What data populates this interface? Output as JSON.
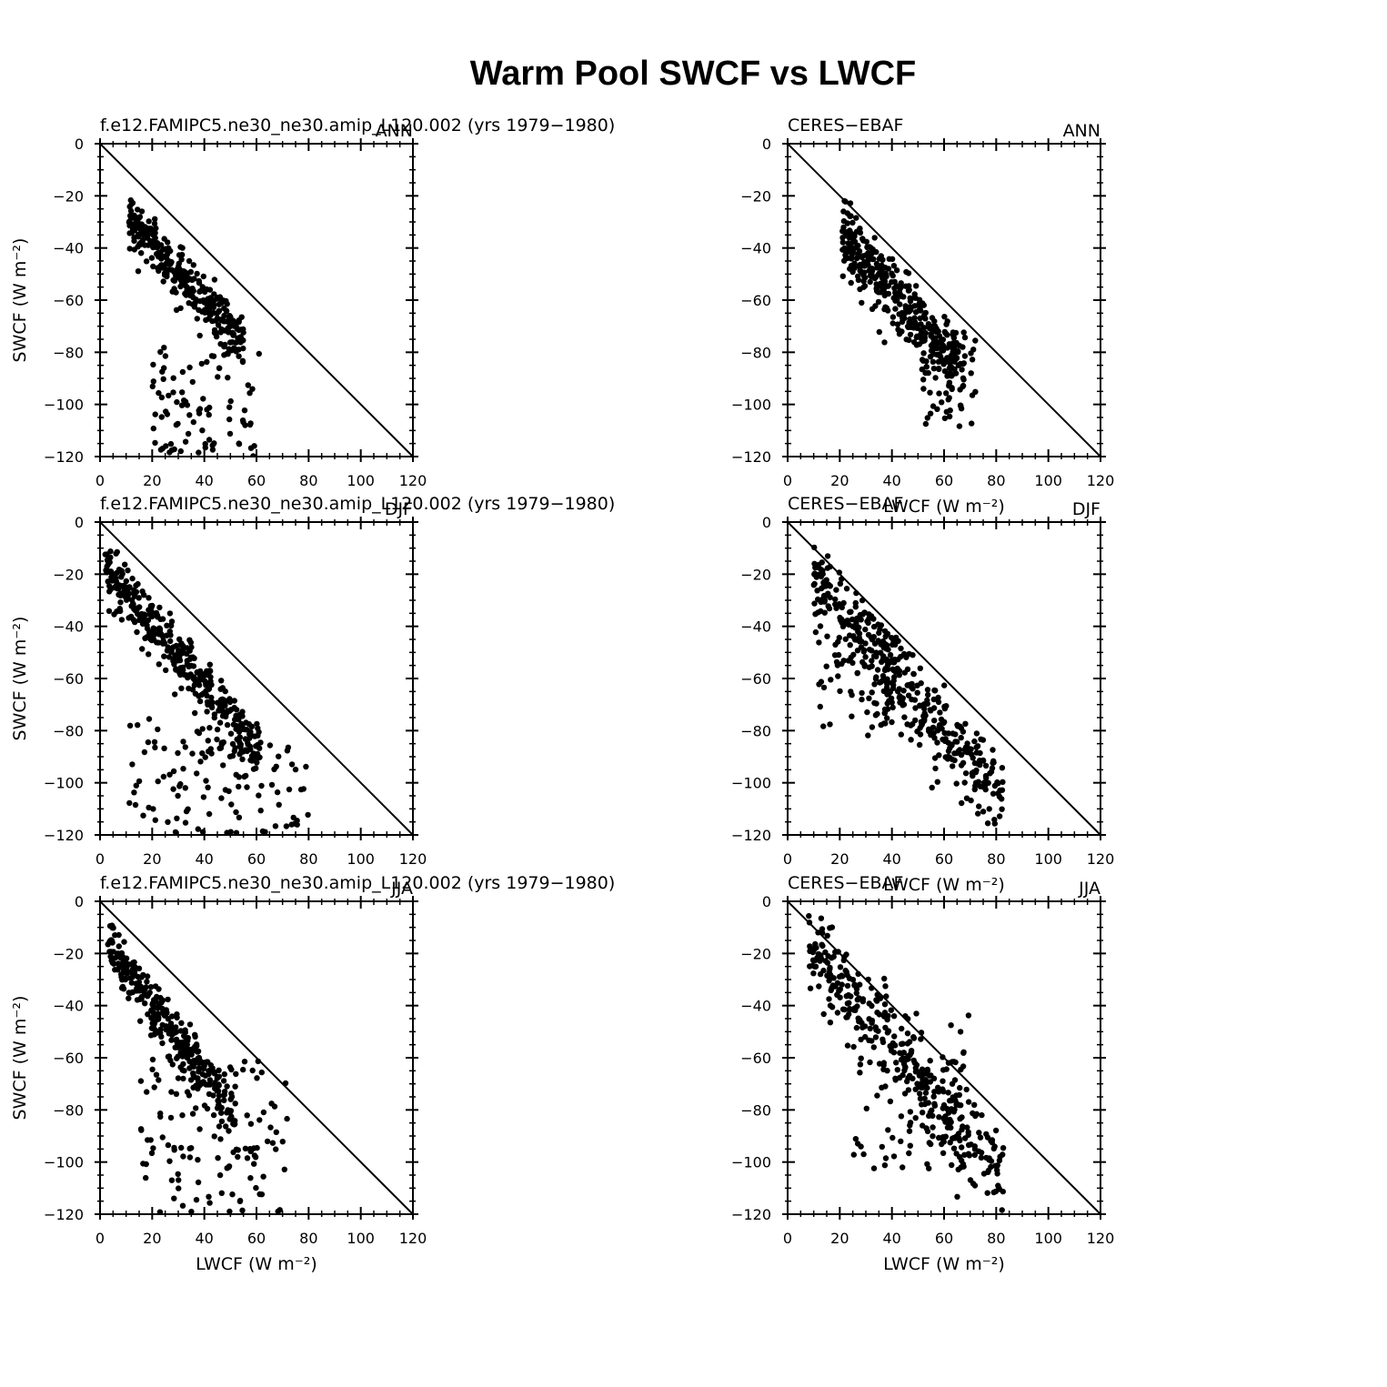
{
  "figure_title": "Warm Pool SWCF vs LWCF",
  "colors": {
    "ink": "#000000",
    "background": "#ffffff"
  },
  "chart_data": [
    {
      "type": "scatter",
      "left_label": "f.e12.FAMIPC5.ne30_ne30.amip_L120.002 (yrs 1979−1980)",
      "right_label": "ANN",
      "xlabel": "",
      "ylabel": "SWCF (W m⁻²)",
      "xlim": [
        0,
        120
      ],
      "ylim": [
        -120,
        0
      ],
      "x_ticks": [
        "0",
        "20",
        "40",
        "60",
        "80",
        "100",
        "120"
      ],
      "y_ticks": [
        "0",
        "−20",
        "−40",
        "−60",
        "−80",
        "−100",
        "−120"
      ],
      "reference_line": [
        [
          0,
          0
        ],
        [
          120,
          -120
        ]
      ],
      "cloud": {
        "x_range": [
          11,
          55
        ],
        "count": 330,
        "spread": 5,
        "slope": -1.06,
        "intercept": -16,
        "tail": {
          "count": 90,
          "x_range": [
            20,
            62
          ],
          "y_range": [
            -120,
            -78
          ]
        }
      }
    },
    {
      "type": "scatter",
      "left_label": "CERES−EBAF",
      "right_label": "ANN",
      "xlabel": "LWCF (W m⁻²)",
      "ylabel": "",
      "xlim": [
        0,
        120
      ],
      "ylim": [
        -120,
        0
      ],
      "x_ticks": [
        "0",
        "20",
        "40",
        "60",
        "80",
        "100",
        "120"
      ],
      "y_ticks": [
        "0",
        "−20",
        "−40",
        "−60",
        "−80",
        "−100",
        "−120"
      ],
      "reference_line": [
        [
          0,
          0
        ],
        [
          120,
          -120
        ]
      ],
      "cloud": {
        "x_range": [
          21,
          68
        ],
        "count": 380,
        "spread": 7,
        "slope": -1.15,
        "intercept": -9,
        "tail": {
          "count": 60,
          "x_range": [
            50,
            72
          ],
          "y_range": [
            -108,
            -70
          ]
        }
      }
    },
    {
      "type": "scatter",
      "left_label": "f.e12.FAMIPC5.ne30_ne30.amip_L120.002 (yrs 1979−1980)",
      "right_label": "DJF",
      "xlabel": "",
      "ylabel": "SWCF (W m⁻²)",
      "xlim": [
        0,
        120
      ],
      "ylim": [
        -120,
        0
      ],
      "x_ticks": [
        "0",
        "20",
        "40",
        "60",
        "80",
        "100",
        "120"
      ],
      "y_ticks": [
        "0",
        "−20",
        "−40",
        "−60",
        "−80",
        "−100",
        "−120"
      ],
      "reference_line": [
        [
          0,
          0
        ],
        [
          120,
          -120
        ]
      ],
      "cloud": {
        "x_range": [
          2,
          62
        ],
        "count": 380,
        "spread": 6,
        "slope": -1.2,
        "intercept": -14,
        "tail": {
          "count": 110,
          "x_range": [
            10,
            80
          ],
          "y_range": [
            -120,
            -75
          ]
        }
      }
    },
    {
      "type": "scatter",
      "left_label": "CERES−EBAF",
      "right_label": "DJF",
      "xlabel": "LWCF (W m⁻²)",
      "ylabel": "",
      "xlim": [
        0,
        120
      ],
      "ylim": [
        -120,
        0
      ],
      "x_ticks": [
        "0",
        "20",
        "40",
        "60",
        "80",
        "100",
        "120"
      ],
      "y_ticks": [
        "0",
        "−20",
        "−40",
        "−60",
        "−80",
        "−100",
        "−120"
      ],
      "reference_line": [
        [
          0,
          0
        ],
        [
          120,
          -120
        ]
      ],
      "cloud": {
        "x_range": [
          10,
          84
        ],
        "count": 420,
        "spread": 8,
        "slope": -1.15,
        "intercept": -9,
        "tail": {
          "count": 50,
          "x_range": [
            12,
            45
          ],
          "y_range": [
            -82,
            -50
          ]
        }
      }
    },
    {
      "type": "scatter",
      "left_label": "f.e12.FAMIPC5.ne30_ne30.amip_L120.002 (yrs 1979−1980)",
      "right_label": "JJA",
      "xlabel": "LWCF (W m⁻²)",
      "ylabel": "SWCF (W m⁻²)",
      "xlim": [
        0,
        120
      ],
      "ylim": [
        -120,
        0
      ],
      "x_ticks": [
        "0",
        "20",
        "40",
        "60",
        "80",
        "100",
        "120"
      ],
      "y_ticks": [
        "0",
        "−20",
        "−40",
        "−60",
        "−80",
        "−100",
        "−120"
      ],
      "reference_line": [
        [
          0,
          0
        ],
        [
          120,
          -120
        ]
      ],
      "cloud": {
        "x_range": [
          3,
          52
        ],
        "count": 330,
        "spread": 5,
        "slope": -1.3,
        "intercept": -12,
        "tail": {
          "count": 120,
          "x_range": [
            15,
            72
          ],
          "y_range": [
            -120,
            -60
          ]
        }
      }
    },
    {
      "type": "scatter",
      "left_label": "CERES−EBAF",
      "right_label": "JJA",
      "xlabel": "LWCF (W m⁻²)",
      "ylabel": "",
      "xlim": [
        0,
        120
      ],
      "ylim": [
        -120,
        0
      ],
      "x_ticks": [
        "0",
        "20",
        "40",
        "60",
        "80",
        "100",
        "120"
      ],
      "y_ticks": [
        "0",
        "−20",
        "−40",
        "−60",
        "−80",
        "−100",
        "−120"
      ],
      "reference_line": [
        [
          0,
          0
        ],
        [
          120,
          -120
        ]
      ],
      "cloud": {
        "x_range": [
          8,
          83
        ],
        "count": 380,
        "spread": 9,
        "slope": -1.2,
        "intercept": -5,
        "tail": {
          "count": 60,
          "x_range": [
            25,
            70
          ],
          "y_range": [
            -103,
            -42
          ]
        }
      }
    }
  ]
}
